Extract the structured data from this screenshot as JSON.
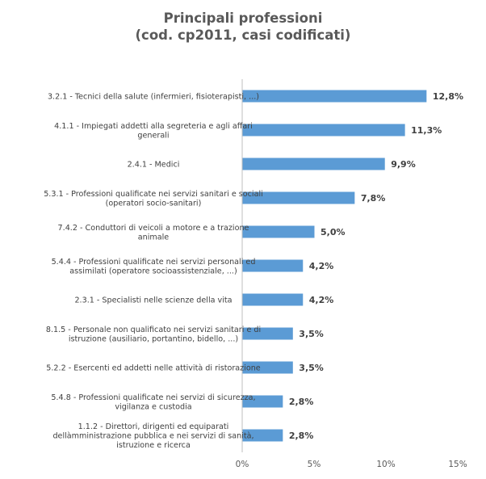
{
  "chart_data": {
    "type": "bar",
    "orientation": "horizontal",
    "title_lines": [
      "Principali professioni",
      "(cod. cp2011, casi codificati)"
    ],
    "categories": [
      [
        "3.2.1 - Tecnici della salute (infermieri, fisioterapisti, ...)"
      ],
      [
        "4.1.1 - Impiegati addetti alla segreteria e agli affari",
        "generali"
      ],
      [
        "2.4.1 - Medici"
      ],
      [
        "5.3.1 - Professioni qualificate nei servizi sanitari e sociali",
        "(operatori socio-sanitari)"
      ],
      [
        "7.4.2 - Conduttori di veicoli a motore e a trazione",
        "animale"
      ],
      [
        "5.4.4 - Professioni qualificate nei servizi personali ed",
        "assimilati (operatore socioassistenziale, ...)"
      ],
      [
        "2.3.1 - Specialisti nelle scienze della vita"
      ],
      [
        "8.1.5 - Personale non qualificato nei servizi  sanitari e di",
        "istruzione (ausiliario, portantino, bidello, ...)"
      ],
      [
        "5.2.2 - Esercenti ed addetti nelle attività di ristorazione"
      ],
      [
        "5.4.8 - Professioni qualificate nei servizi di sicurezza,",
        "vigilanza e custodia"
      ],
      [
        "1.1.2 - Direttori, dirigenti ed equiparati",
        "dellàmministrazione pubblica e nei servizi di sanità,",
        "istruzione e ricerca"
      ]
    ],
    "values": [
      12.8,
      11.3,
      9.9,
      7.8,
      5.0,
      4.2,
      4.2,
      3.5,
      3.5,
      2.8,
      2.8
    ],
    "value_labels": [
      "12,8%",
      "11,3%",
      "9,9%",
      "7,8%",
      "5,0%",
      "4,2%",
      "4,2%",
      "3,5%",
      "3,5%",
      "2,8%",
      "2,8%"
    ],
    "xlim": [
      0,
      15
    ],
    "xticks": [
      0,
      5,
      10,
      15
    ],
    "xtick_labels": [
      "0%",
      "5%",
      "10%",
      "15%"
    ],
    "grid": false,
    "legend": "none",
    "bar_color": "#5B9BD5",
    "axis_color": "#BFBFBF"
  }
}
